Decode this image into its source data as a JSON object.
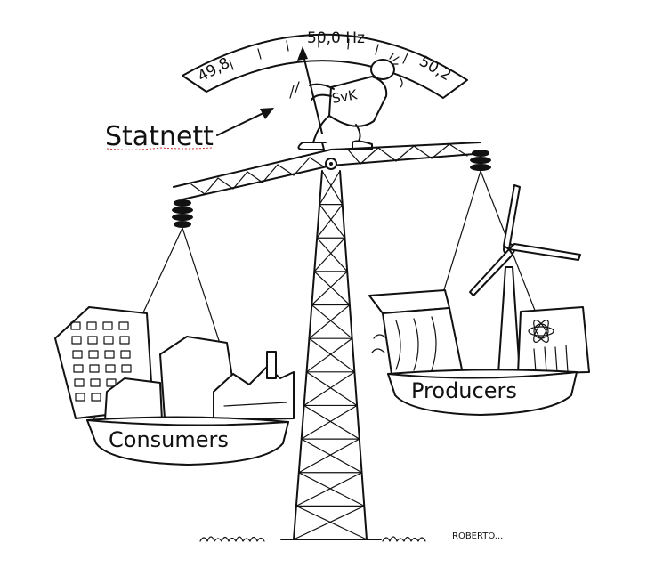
{
  "gauge": {
    "left_mark": "49,8",
    "center_mark": "50,0 Hz",
    "right_mark": "50,2"
  },
  "operator_label": "Statnett",
  "operator_badge": "SvK",
  "left_pan_label": "Consumers",
  "right_pan_label": "Producers",
  "artist_signature": "ROBERTO...",
  "icons": [
    "tower-icon",
    "wind-turbine-icon",
    "nuclear-icon",
    "dam-icon",
    "buildings-icon",
    "factory-icon",
    "person-icon"
  ]
}
